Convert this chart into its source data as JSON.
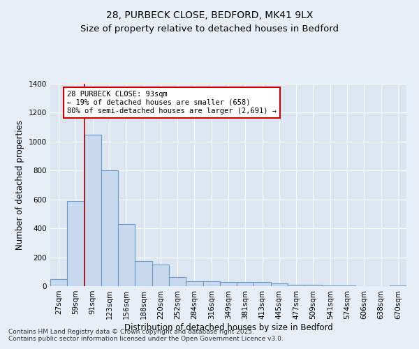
{
  "title_line1": "28, PURBECK CLOSE, BEDFORD, MK41 9LX",
  "title_line2": "Size of property relative to detached houses in Bedford",
  "xlabel": "Distribution of detached houses by size in Bedford",
  "ylabel": "Number of detached properties",
  "categories": [
    "27sqm",
    "59sqm",
    "91sqm",
    "123sqm",
    "156sqm",
    "188sqm",
    "220sqm",
    "252sqm",
    "284sqm",
    "316sqm",
    "349sqm",
    "381sqm",
    "413sqm",
    "445sqm",
    "477sqm",
    "509sqm",
    "541sqm",
    "574sqm",
    "606sqm",
    "638sqm",
    "670sqm"
  ],
  "values": [
    50,
    590,
    1050,
    800,
    430,
    175,
    150,
    65,
    35,
    35,
    30,
    30,
    30,
    20,
    12,
    8,
    6,
    4,
    2,
    2,
    5
  ],
  "bar_color": "#c8d8ed",
  "bar_edge_color": "#6699cc",
  "vline_color": "#aa0000",
  "annotation_line1": "28 PURBECK CLOSE: 93sqm",
  "annotation_line2": "← 19% of detached houses are smaller (658)",
  "annotation_line3": "80% of semi-detached houses are larger (2,691) →",
  "annotation_box_facecolor": "#ffffff",
  "annotation_box_edgecolor": "#cc0000",
  "ylim": [
    0,
    1400
  ],
  "yticks": [
    0,
    200,
    400,
    600,
    800,
    1000,
    1200,
    1400
  ],
  "background_color": "#e8eef5",
  "plot_bg_color": "#dde6f0",
  "footer_line1": "Contains HM Land Registry data © Crown copyright and database right 2025.",
  "footer_line2": "Contains public sector information licensed under the Open Government Licence v3.0.",
  "title_fontsize": 10,
  "subtitle_fontsize": 9.5,
  "xlabel_fontsize": 8.5,
  "ylabel_fontsize": 8.5,
  "tick_fontsize": 7.5,
  "annotation_fontsize": 7.5,
  "footer_fontsize": 6.5
}
